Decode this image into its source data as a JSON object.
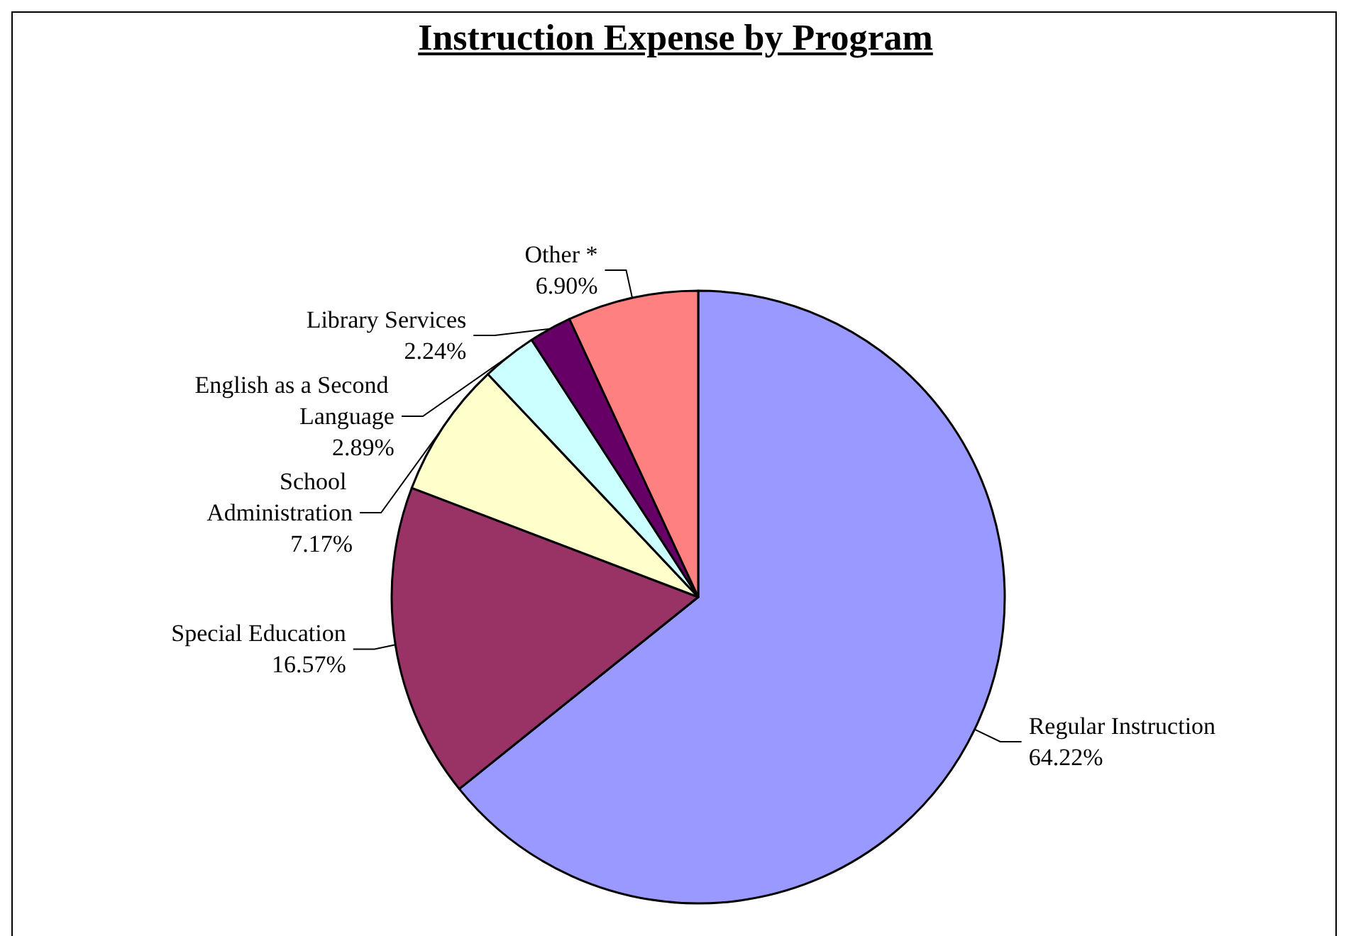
{
  "chart_data": {
    "type": "pie",
    "title": "Instruction Expense by Program",
    "categories": [
      "Regular Instruction",
      "Special Education",
      "School Administration",
      "English as a Second Language",
      "Library Services",
      "Other *"
    ],
    "values": [
      64.22,
      16.57,
      7.17,
      2.89,
      2.24,
      6.9
    ],
    "value_labels": [
      "64.22%",
      "16.57%",
      "7.17%",
      "2.89%",
      "2.24%",
      "6.90%"
    ],
    "colors": [
      "#9999ff",
      "#993366",
      "#ffffcc",
      "#ccffff",
      "#660066",
      "#ff8080"
    ],
    "legend": false
  }
}
